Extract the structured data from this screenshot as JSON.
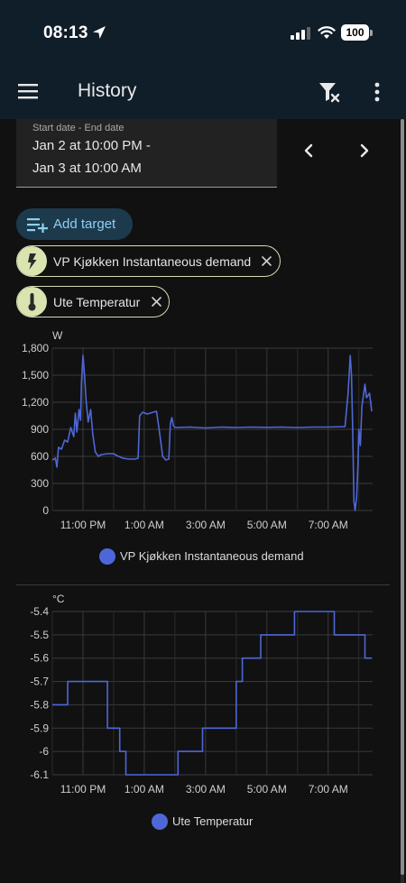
{
  "status_bar": {
    "time": "08:13",
    "battery": "100"
  },
  "app_bar": {
    "title": "History"
  },
  "date_range": {
    "label": "Start date - End date",
    "line1": "Jan 2 at 10:00 PM -",
    "line2": "Jan 3 at 10:00 AM"
  },
  "add_target": {
    "label": "Add target"
  },
  "targets": [
    {
      "label": "VP Kjøkken Instantaneous demand",
      "icon": "flash-icon"
    },
    {
      "label": "Ute Temperatur",
      "icon": "thermometer-icon"
    }
  ],
  "colors": {
    "series": "#4e67d8",
    "chip_avatar": "#d9e4b0",
    "app_bar": "#101e2a",
    "accent": "#8ecff3"
  },
  "chart_data": [
    {
      "type": "line",
      "ylabel": "W",
      "ylim": [
        0,
        1800
      ],
      "yticks": [
        "1,800",
        "1,500",
        "1,200",
        "900",
        "600",
        "300",
        "0"
      ],
      "xticks": [
        "11:00 PM",
        "1:00 AM",
        "3:00 AM",
        "5:00 AM",
        "7:00 AM"
      ],
      "grid": true,
      "legend_position": "bottom-center",
      "series": [
        {
          "name": "VP Kjøkken Instantaneous demand",
          "points": [
            [
              22.0,
              560
            ],
            [
              22.1,
              580
            ],
            [
              22.15,
              480
            ],
            [
              22.2,
              700
            ],
            [
              22.3,
              680
            ],
            [
              22.4,
              780
            ],
            [
              22.5,
              760
            ],
            [
              22.6,
              920
            ],
            [
              22.7,
              820
            ],
            [
              22.75,
              1080
            ],
            [
              22.8,
              870
            ],
            [
              22.87,
              1120
            ],
            [
              22.92,
              1000
            ],
            [
              22.95,
              1420
            ],
            [
              23.0,
              1720
            ],
            [
              23.05,
              1500
            ],
            [
              23.1,
              1220
            ],
            [
              23.17,
              980
            ],
            [
              23.25,
              1120
            ],
            [
              23.32,
              850
            ],
            [
              23.4,
              650
            ],
            [
              23.5,
              600
            ],
            [
              23.6,
              620
            ],
            [
              23.8,
              630
            ],
            [
              24.0,
              630
            ],
            [
              24.1,
              610
            ],
            [
              24.3,
              580
            ],
            [
              24.5,
              570
            ],
            [
              24.7,
              570
            ],
            [
              24.8,
              580
            ],
            [
              24.85,
              1050
            ],
            [
              24.95,
              1090
            ],
            [
              25.1,
              1070
            ],
            [
              25.3,
              1090
            ],
            [
              25.4,
              1100
            ],
            [
              25.5,
              860
            ],
            [
              25.6,
              600
            ],
            [
              25.7,
              560
            ],
            [
              25.8,
              570
            ],
            [
              25.85,
              960
            ],
            [
              25.9,
              1030
            ],
            [
              25.95,
              940
            ],
            [
              26.0,
              920
            ],
            [
              26.5,
              925
            ],
            [
              27.0,
              915
            ],
            [
              27.5,
              925
            ],
            [
              28.0,
              920
            ],
            [
              28.5,
              925
            ],
            [
              29.0,
              922
            ],
            [
              29.5,
              925
            ],
            [
              30.0,
              920
            ],
            [
              30.5,
              925
            ],
            [
              31.0,
              925
            ],
            [
              31.55,
              930
            ],
            [
              31.65,
              1300
            ],
            [
              31.72,
              1720
            ],
            [
              31.76,
              1500
            ],
            [
              31.8,
              900
            ],
            [
              31.84,
              100
            ],
            [
              31.88,
              0
            ],
            [
              31.93,
              150
            ],
            [
              31.97,
              500
            ],
            [
              32.0,
              900
            ],
            [
              32.05,
              720
            ],
            [
              32.1,
              1150
            ],
            [
              32.2,
              1400
            ],
            [
              32.25,
              1250
            ],
            [
              32.35,
              1300
            ],
            [
              32.42,
              1100
            ]
          ]
        }
      ]
    },
    {
      "type": "line",
      "ylabel": "°C",
      "ylim": [
        -6.1,
        -5.4
      ],
      "yticks": [
        "-5.4",
        "-5.5",
        "-5.6",
        "-5.7",
        "-5.8",
        "-5.9",
        "-6",
        "-6.1"
      ],
      "xticks": [
        "11:00 PM",
        "1:00 AM",
        "3:00 AM",
        "5:00 AM",
        "7:00 AM"
      ],
      "grid": true,
      "legend_position": "bottom-center",
      "series": [
        {
          "name": "Ute Temperatur",
          "step": true,
          "points": [
            [
              22.0,
              -5.8
            ],
            [
              22.5,
              -5.7
            ],
            [
              23.8,
              -5.9
            ],
            [
              24.2,
              -6.0
            ],
            [
              24.4,
              -6.1
            ],
            [
              26.1,
              -6.0
            ],
            [
              26.9,
              -5.9
            ],
            [
              28.0,
              -5.7
            ],
            [
              28.2,
              -5.6
            ],
            [
              28.8,
              -5.5
            ],
            [
              29.9,
              -5.4
            ],
            [
              31.2,
              -5.5
            ],
            [
              32.2,
              -5.6
            ],
            [
              32.42,
              -5.6
            ]
          ]
        }
      ]
    }
  ]
}
